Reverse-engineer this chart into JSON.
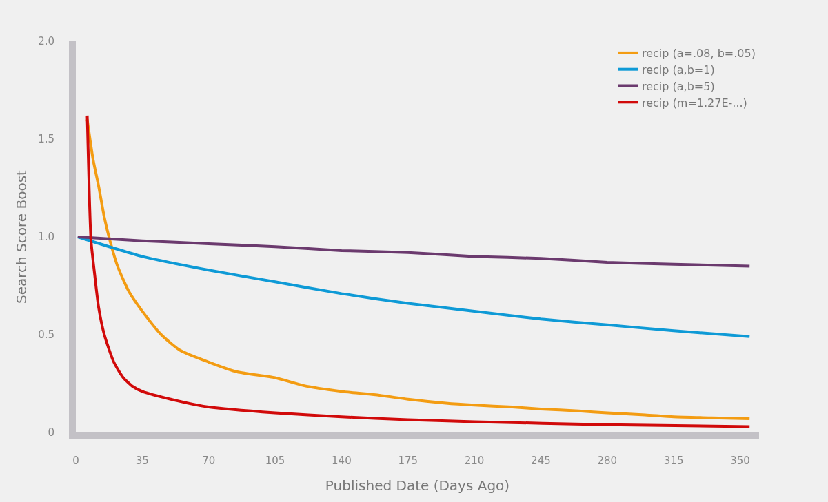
{
  "chart_data": {
    "type": "line",
    "xlabel": "Published Date (Days Ago)",
    "ylabel": "Search Score Boost",
    "xlim": [
      0,
      360
    ],
    "xticks": [
      0,
      35,
      70,
      105,
      140,
      175,
      210,
      245,
      280,
      315,
      350
    ],
    "ylim": [
      0,
      2.0
    ],
    "yticks": [
      {
        "value": 0,
        "label": "0"
      },
      {
        "value": 0.5,
        "label": "0.5"
      },
      {
        "value": 1,
        "label": "1.0"
      },
      {
        "value": 1.5,
        "label": "1.5"
      },
      {
        "value": 2,
        "label": "2.0"
      }
    ],
    "grid": false,
    "legend": "top right",
    "series": [
      {
        "name": "recip (a=.08, b=.05)",
        "color": "#f39c12",
        "x": [
          6,
          9,
          12,
          15,
          18,
          22,
          28,
          35,
          45,
          55,
          70,
          85,
          105,
          120,
          140,
          160,
          175,
          195,
          210,
          230,
          245,
          265,
          280,
          300,
          315,
          335,
          355
        ],
        "values": [
          1.6,
          1.4,
          1.26,
          1.1,
          0.98,
          0.85,
          0.72,
          0.62,
          0.5,
          0.42,
          0.36,
          0.31,
          0.28,
          0.24,
          0.21,
          0.19,
          0.17,
          0.15,
          0.14,
          0.13,
          0.12,
          0.11,
          0.1,
          0.09,
          0.08,
          0.075,
          0.07
        ]
      },
      {
        "name": "recip (a,b=1)",
        "color": "#0e9ad6",
        "x": [
          1,
          35,
          70,
          105,
          140,
          175,
          210,
          245,
          280,
          315,
          355
        ],
        "values": [
          1.0,
          0.9,
          0.83,
          0.77,
          0.71,
          0.66,
          0.62,
          0.58,
          0.55,
          0.52,
          0.49
        ]
      },
      {
        "name": "recip (a,b=5)",
        "color": "#6b3a6e",
        "x": [
          1,
          35,
          70,
          105,
          140,
          175,
          210,
          245,
          280,
          315,
          355
        ],
        "values": [
          1.0,
          0.98,
          0.965,
          0.95,
          0.93,
          0.92,
          0.9,
          0.89,
          0.87,
          0.86,
          0.85
        ]
      },
      {
        "name": "recip (m=1.27E-...)",
        "color": "#d10a0a",
        "x": [
          6,
          7,
          8,
          10,
          12,
          15,
          20,
          25,
          30,
          35,
          50,
          70,
          105,
          140,
          175,
          210,
          280,
          355
        ],
        "values": [
          1.62,
          1.25,
          0.98,
          0.8,
          0.64,
          0.5,
          0.36,
          0.28,
          0.235,
          0.21,
          0.17,
          0.13,
          0.1,
          0.08,
          0.065,
          0.055,
          0.04,
          0.03
        ]
      }
    ]
  }
}
